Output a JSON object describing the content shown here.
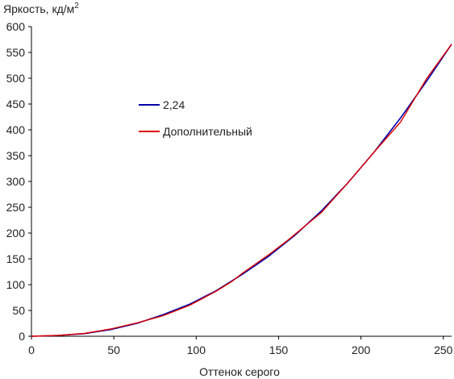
{
  "chart_data": {
    "type": "line",
    "ylabel": "Яркость, кд/м",
    "ylabel_sup": "2",
    "xlabel": "Оттенок серого",
    "xlim": [
      0,
      255
    ],
    "ylim": [
      0,
      600
    ],
    "x_ticks": [
      0,
      50,
      100,
      150,
      200,
      250
    ],
    "y_ticks": [
      0,
      50,
      100,
      150,
      200,
      250,
      300,
      350,
      400,
      450,
      500,
      550,
      600
    ],
    "grid": false,
    "legend_position": "upper-left-center",
    "series": [
      {
        "name": "2,24",
        "color": "#0000aa",
        "x": [
          0,
          16,
          32,
          48,
          64,
          80,
          96,
          112,
          128,
          144,
          160,
          176,
          192,
          208,
          224,
          240,
          255
        ],
        "y": [
          0,
          1.5,
          5,
          13,
          25,
          42,
          62,
          88,
          120,
          155,
          196,
          243,
          297,
          357,
          423,
          495,
          566
        ]
      },
      {
        "name": "Дополнительный",
        "color": "#dd0000",
        "x": [
          0,
          16,
          32,
          48,
          64,
          80,
          96,
          112,
          122,
          128,
          144,
          156,
          176,
          192,
          208,
          224,
          240,
          255
        ],
        "y": [
          0,
          1.5,
          5.5,
          14,
          26,
          40,
          60,
          87,
          107,
          122,
          158,
          187,
          240,
          297,
          357,
          415,
          500,
          566
        ]
      }
    ]
  }
}
